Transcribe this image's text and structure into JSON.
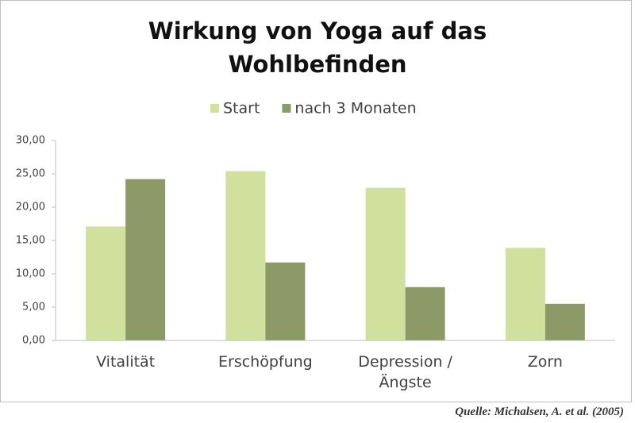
{
  "chart_data": {
    "type": "bar",
    "title": "Wirkung von Yoga auf das Wohlbefinden",
    "categories": [
      "Vitalität",
      "Erschöpfung",
      "Depression / Ängste",
      "Zorn"
    ],
    "series": [
      {
        "name": "Start",
        "color": "#d1e09d",
        "values": [
          17.1,
          25.4,
          22.9,
          13.9
        ]
      },
      {
        "name": "nach 3 Monaten",
        "color": "#8c9a68",
        "values": [
          24.2,
          11.7,
          8.0,
          5.5
        ]
      }
    ],
    "ylim": [
      0,
      30
    ],
    "yticks": [
      {
        "value": 0,
        "label": "0,00"
      },
      {
        "value": 5,
        "label": "5,00"
      },
      {
        "value": 10,
        "label": "10,00"
      },
      {
        "value": 15,
        "label": "15,00"
      },
      {
        "value": 20,
        "label": "20,00"
      },
      {
        "value": 25,
        "label": "25,00"
      },
      {
        "value": 30,
        "label": "30,00"
      }
    ],
    "grid": false,
    "legend": "top",
    "source": "Quelle: Michalsen, A. et al. (2005)"
  }
}
